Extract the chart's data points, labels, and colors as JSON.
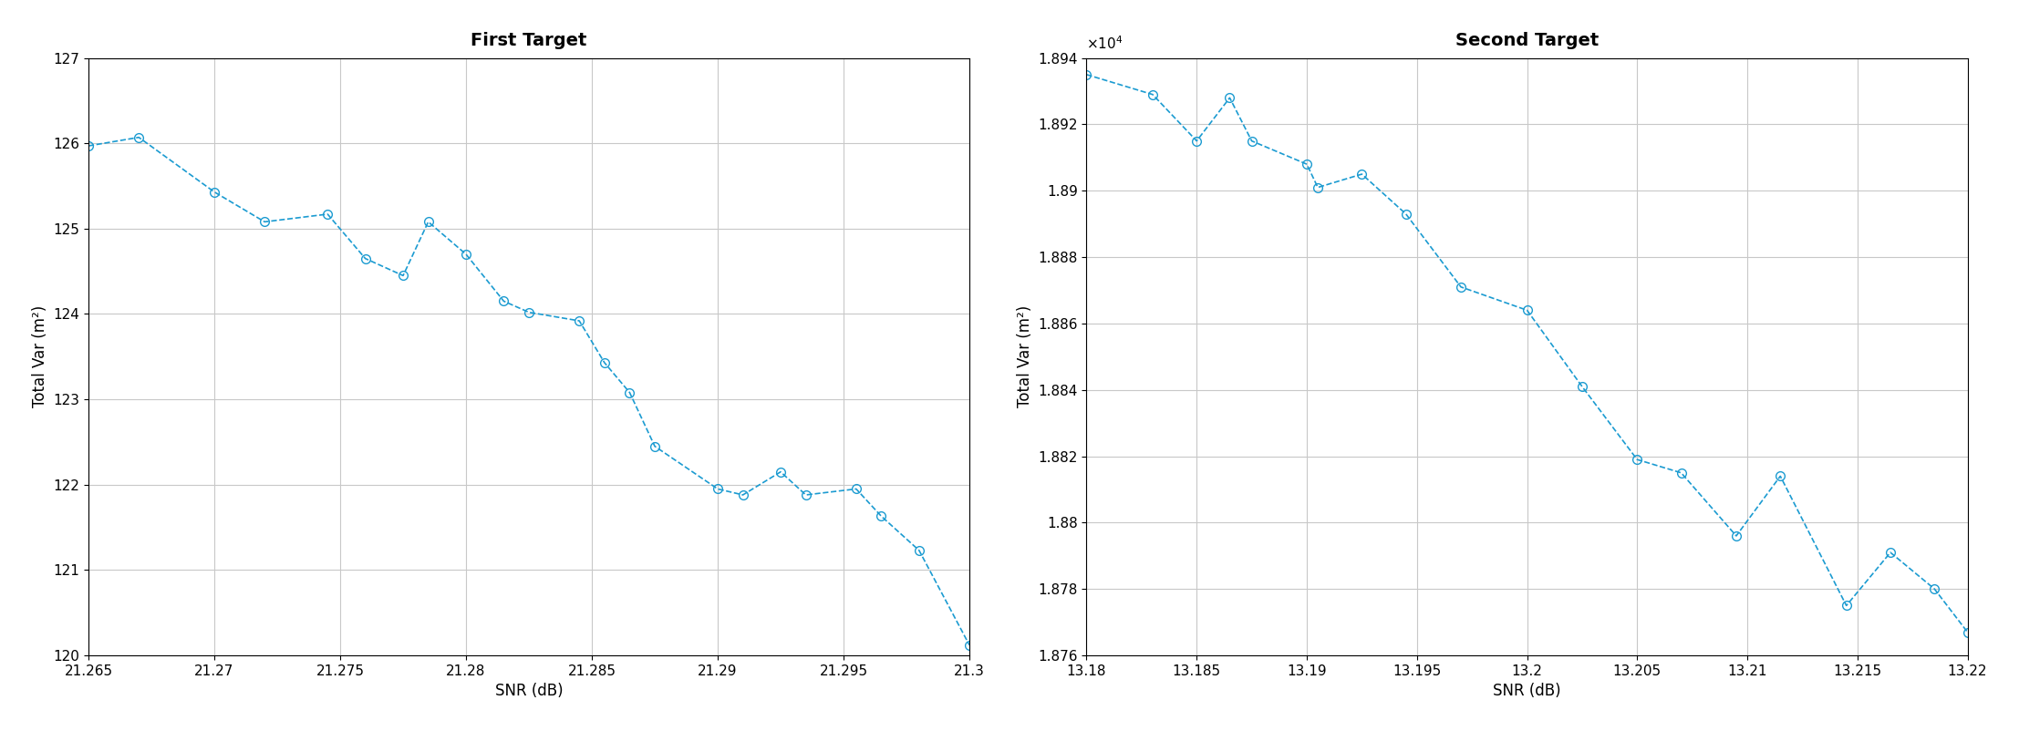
{
  "plot1": {
    "title": "First Target",
    "xlabel": "SNR (dB)",
    "ylabel": "Total Var (m²)",
    "x": [
      21.265,
      21.267,
      21.27,
      21.272,
      21.2745,
      21.276,
      21.2775,
      21.2785,
      21.28,
      21.2815,
      21.2825,
      21.2845,
      21.2855,
      21.2865,
      21.2875,
      21.29,
      21.291,
      21.2925,
      21.2935,
      21.2955,
      21.2965,
      21.298,
      21.3
    ],
    "y": [
      125.97,
      126.07,
      125.43,
      125.08,
      125.17,
      124.65,
      124.45,
      125.08,
      124.7,
      124.15,
      124.02,
      123.92,
      123.43,
      123.08,
      122.45,
      121.95,
      121.88,
      122.15,
      121.88,
      121.95,
      121.63,
      121.23,
      120.12
    ],
    "xlim": [
      21.265,
      21.3
    ],
    "ylim": [
      120,
      127
    ],
    "xticks": [
      21.265,
      21.27,
      21.275,
      21.28,
      21.285,
      21.29,
      21.295,
      21.3
    ],
    "xticklabels": [
      "21.265",
      "21.27",
      "21.275",
      "21.28",
      "21.285",
      "21.29",
      "21.295",
      "21.3"
    ],
    "yticks": [
      120,
      121,
      122,
      123,
      124,
      125,
      126,
      127
    ]
  },
  "plot2": {
    "title": "Second Target",
    "xlabel": "SNR (dB)",
    "ylabel": "Total Var (m²)",
    "x": [
      13.18,
      13.183,
      13.185,
      13.1865,
      13.1875,
      13.19,
      13.1905,
      13.1925,
      13.1945,
      13.197,
      13.2,
      13.2025,
      13.205,
      13.207,
      13.2095,
      13.2115,
      13.2145,
      13.2165,
      13.2185,
      13.22
    ],
    "y": [
      18935,
      18929,
      18915,
      18928,
      18915,
      18908,
      18901,
      18905,
      18893,
      18871,
      18864,
      18841,
      18819,
      18815,
      18796,
      18814,
      18775,
      18791,
      18780,
      18767
    ],
    "xlim": [
      13.18,
      13.22
    ],
    "ylim": [
      18760,
      18940
    ],
    "xticks": [
      13.18,
      13.185,
      13.19,
      13.195,
      13.2,
      13.205,
      13.21,
      13.215,
      13.22
    ],
    "xticklabels": [
      "13.18",
      "13.185",
      "13.19",
      "13.195",
      "13.2",
      "13.205",
      "13.21",
      "13.215",
      "13.22"
    ],
    "yticks": [
      18760,
      18780,
      18800,
      18820,
      18840,
      18860,
      18880,
      18900,
      18920,
      18940
    ],
    "yticklabels": [
      "1.876",
      "1.878",
      "1.88",
      "1.882",
      "1.884",
      "1.886",
      "1.888",
      "1.89",
      "1.892",
      "1.894"
    ],
    "scale_factor": 10000
  },
  "line_color": "#1b9bd1",
  "line_style": "--",
  "marker": "o",
  "marker_facecolor": "none",
  "marker_size": 7,
  "line_width": 1.2,
  "grid_color": "#c8c8c8",
  "bg_color": "#ffffff",
  "title_fontsize": 14,
  "label_fontsize": 12,
  "tick_fontsize": 11
}
